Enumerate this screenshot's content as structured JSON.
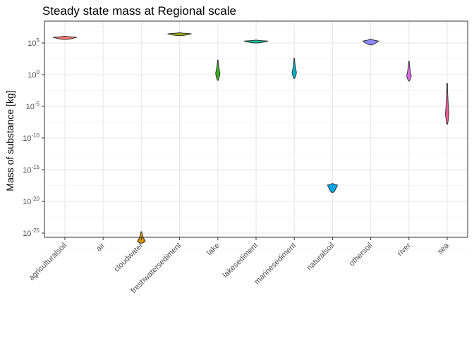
{
  "chart_data": {
    "type": "violin",
    "title": "Steady state mass at  Regional scale",
    "xlabel": "",
    "ylabel": "Mass of substance [kg]",
    "y_scale": "log10",
    "y_tick_labels": [
      "10^5",
      "10^0",
      "10^-5",
      "10^-10",
      "10^-15",
      "10^-20",
      "10^-25"
    ],
    "categories": [
      "agriculturalsoil",
      "air",
      "cloudwater",
      "freshwatersediment",
      "lake",
      "lakesediment",
      "marinesediment",
      "naturalsoil",
      "othersoil",
      "river",
      "sea"
    ],
    "series": [
      {
        "category": "agriculturalsoil",
        "color": "#F8766D",
        "min_log10": 5.55,
        "max_log10": 6.05,
        "mode_log10": 5.9
      },
      {
        "category": "air",
        "color": "#DB8E00",
        "min_log10": null,
        "max_log10": null,
        "mode_log10": null
      },
      {
        "category": "cloudwater",
        "color": "#D39200",
        "min_log10": -26.6,
        "max_log10": -24.8,
        "mode_log10": -26.3
      },
      {
        "category": "freshwatersediment",
        "color": "#93AA00",
        "min_log10": 6.15,
        "max_log10": 6.6,
        "mode_log10": 6.45
      },
      {
        "category": "lake",
        "color": "#3CB416",
        "min_log10": -0.9,
        "max_log10": 2.3,
        "mode_log10": 0.2
      },
      {
        "category": "lakesediment",
        "color": "#00BE92",
        "min_log10": 5.0,
        "max_log10": 5.45,
        "mode_log10": 5.3
      },
      {
        "category": "marinesediment",
        "color": "#00B8C5",
        "min_log10": -0.6,
        "max_log10": 2.6,
        "mode_log10": 0.3
      },
      {
        "category": "naturalsoil",
        "color": "#00A5E8",
        "min_log10": -18.6,
        "max_log10": -17.2,
        "mode_log10": -17.4
      },
      {
        "category": "othersoil",
        "color": "#8F87FF",
        "min_log10": 4.7,
        "max_log10": 5.6,
        "mode_log10": 5.3
      },
      {
        "category": "river",
        "color": "#E268EF",
        "min_log10": -1.0,
        "max_log10": 2.1,
        "mode_log10": -0.2
      },
      {
        "category": "sea",
        "color": "#EE5F9B",
        "min_log10": -7.8,
        "max_log10": -1.4,
        "mode_log10": -6.2
      }
    ],
    "grid": true,
    "legend": "none"
  }
}
